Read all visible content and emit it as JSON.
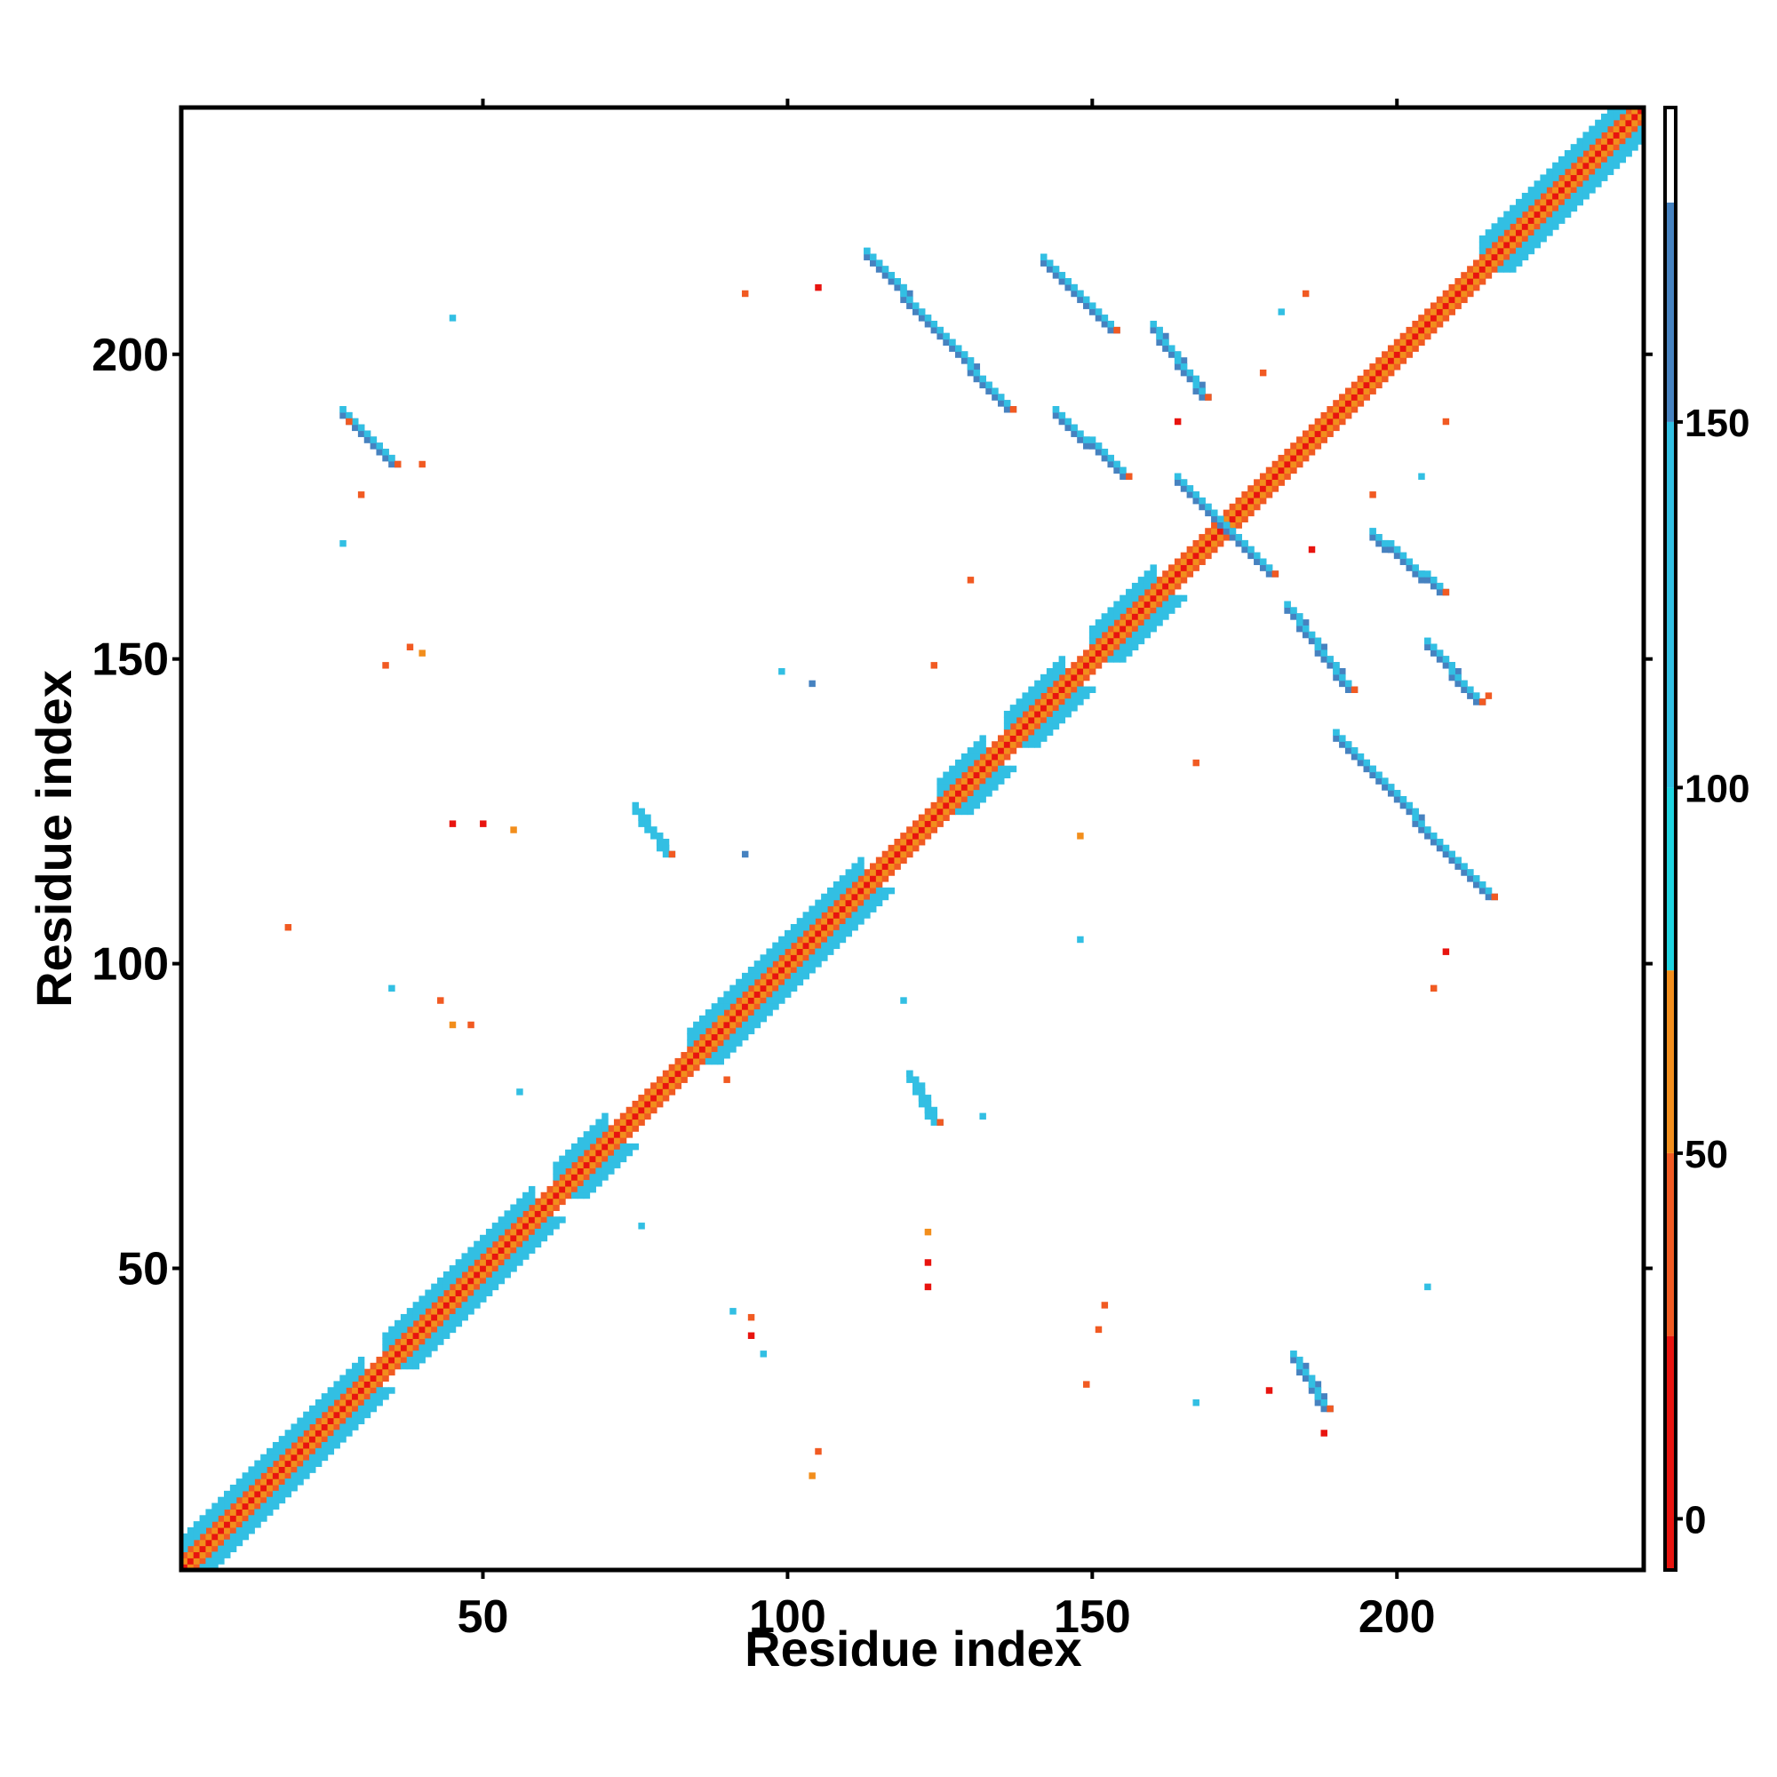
{
  "chart_data": {
    "type": "heatmap",
    "title": "",
    "xlabel": "Residue index",
    "ylabel": "Residue index",
    "xlim": [
      1,
      240
    ],
    "ylim": [
      1,
      240
    ],
    "x_ticks": [
      50,
      100,
      150,
      200
    ],
    "y_ticks": [
      50,
      100,
      150,
      200
    ],
    "grid": false,
    "description_of_values": "pairwise residue map; color encodes value on colorbar",
    "colorbar": {
      "ticks": [
        0,
        50,
        100,
        150
      ],
      "range": [
        -7,
        193
      ],
      "bands": [
        {
          "from": -7,
          "to": 25,
          "color": "#e8140f"
        },
        {
          "from": 25,
          "to": 50,
          "color": "#f15a22"
        },
        {
          "from": 50,
          "to": 75,
          "color": "#f28e1c"
        },
        {
          "from": 75,
          "to": 100,
          "color": "#1fd3e0"
        },
        {
          "from": 100,
          "to": 150,
          "color": "#32bfe3"
        },
        {
          "from": 150,
          "to": 180,
          "color": "#4682c0"
        },
        {
          "from": 180,
          "to": 193,
          "color": "#ffffff"
        }
      ]
    },
    "diagonal": {
      "from": 1,
      "to": 240
    },
    "diagonal_blocks": [
      {
        "from": 1,
        "to": 30,
        "value": 120
      },
      {
        "from": 34,
        "to": 58,
        "value": 110
      },
      {
        "from": 62,
        "to": 70,
        "value": 110
      },
      {
        "from": 84,
        "to": 112,
        "value": 115
      },
      {
        "from": 125,
        "to": 132,
        "value": 110
      },
      {
        "from": 136,
        "to": 145,
        "value": 110
      },
      {
        "from": 150,
        "to": 160,
        "value": 110
      },
      {
        "from": 214,
        "to": 240,
        "value": 120
      }
    ],
    "strands": [
      {
        "x1": 113,
        "y1": 216,
        "x2": 136,
        "y2": 191,
        "value": 160
      },
      {
        "x1": 142,
        "y1": 215,
        "x2": 153,
        "y2": 204,
        "value": 160
      },
      {
        "x1": 160,
        "y1": 204,
        "x2": 168,
        "y2": 193,
        "value": 160
      },
      {
        "x1": 144,
        "y1": 190,
        "x2": 155,
        "y2": 180,
        "value": 160
      },
      {
        "x1": 164,
        "y1": 179,
        "x2": 179,
        "y2": 164,
        "value": 160
      },
      {
        "x1": 196,
        "y1": 170,
        "x2": 207,
        "y2": 161,
        "value": 160
      },
      {
        "x1": 182,
        "y1": 158,
        "x2": 192,
        "y2": 145,
        "value": 160
      },
      {
        "x1": 205,
        "y1": 152,
        "x2": 213,
        "y2": 143,
        "value": 160
      },
      {
        "x1": 190,
        "y1": 137,
        "x2": 215,
        "y2": 111,
        "value": 160
      },
      {
        "x1": 27,
        "y1": 190,
        "x2": 35,
        "y2": 182,
        "value": 160
      },
      {
        "x1": 75,
        "y1": 125,
        "x2": 80,
        "y2": 118,
        "value": 110
      },
      {
        "x1": 120,
        "y1": 81,
        "x2": 124,
        "y2": 74,
        "value": 110
      },
      {
        "x1": 183,
        "y1": 35,
        "x2": 188,
        "y2": 27,
        "value": 160
      }
    ],
    "spots": [
      {
        "x": 105,
        "y": 211,
        "value": 20
      },
      {
        "x": 93,
        "y": 210,
        "value": 40
      },
      {
        "x": 45,
        "y": 206,
        "value": 140
      },
      {
        "x": 28,
        "y": 189,
        "value": 35
      },
      {
        "x": 30,
        "y": 177,
        "value": 35
      },
      {
        "x": 40,
        "y": 182,
        "value": 45
      },
      {
        "x": 27,
        "y": 169,
        "value": 110
      },
      {
        "x": 130,
        "y": 163,
        "value": 30
      },
      {
        "x": 34,
        "y": 149,
        "value": 45
      },
      {
        "x": 38,
        "y": 152,
        "value": 30
      },
      {
        "x": 40,
        "y": 151,
        "value": 60
      },
      {
        "x": 124,
        "y": 149,
        "value": 40
      },
      {
        "x": 99,
        "y": 148,
        "value": 140
      },
      {
        "x": 104,
        "y": 146,
        "value": 150
      },
      {
        "x": 167,
        "y": 133,
        "value": 30
      },
      {
        "x": 45,
        "y": 123,
        "value": 20
      },
      {
        "x": 50,
        "y": 123,
        "value": 20
      },
      {
        "x": 55,
        "y": 122,
        "value": 60
      },
      {
        "x": 93,
        "y": 118,
        "value": 150
      },
      {
        "x": 148,
        "y": 121,
        "value": 50
      },
      {
        "x": 18,
        "y": 106,
        "value": 40
      },
      {
        "x": 148,
        "y": 104,
        "value": 140
      },
      {
        "x": 208,
        "y": 102,
        "value": 20
      },
      {
        "x": 206,
        "y": 96,
        "value": 45
      },
      {
        "x": 35,
        "y": 96,
        "value": 110
      },
      {
        "x": 43,
        "y": 94,
        "value": 40
      },
      {
        "x": 45,
        "y": 90,
        "value": 60
      },
      {
        "x": 48,
        "y": 90,
        "value": 40
      },
      {
        "x": 119,
        "y": 94,
        "value": 140
      },
      {
        "x": 56,
        "y": 79,
        "value": 110
      },
      {
        "x": 132,
        "y": 75,
        "value": 110
      },
      {
        "x": 76,
        "y": 57,
        "value": 110
      },
      {
        "x": 123,
        "y": 56,
        "value": 60
      },
      {
        "x": 123,
        "y": 51,
        "value": 20
      },
      {
        "x": 123,
        "y": 47,
        "value": 20
      },
      {
        "x": 91,
        "y": 43,
        "value": 110
      },
      {
        "x": 94,
        "y": 42,
        "value": 40
      },
      {
        "x": 94,
        "y": 39,
        "value": 20
      },
      {
        "x": 96,
        "y": 36,
        "value": 110
      },
      {
        "x": 152,
        "y": 44,
        "value": 40
      },
      {
        "x": 151,
        "y": 40,
        "value": 40
      },
      {
        "x": 149,
        "y": 31,
        "value": 45
      },
      {
        "x": 205,
        "y": 47,
        "value": 140
      },
      {
        "x": 167,
        "y": 28,
        "value": 110
      },
      {
        "x": 179,
        "y": 30,
        "value": 20
      },
      {
        "x": 188,
        "y": 23,
        "value": 20
      },
      {
        "x": 105,
        "y": 20,
        "value": 45
      },
      {
        "x": 104,
        "y": 16,
        "value": 60
      },
      {
        "x": 185,
        "y": 210,
        "value": 45
      },
      {
        "x": 181,
        "y": 207,
        "value": 110
      },
      {
        "x": 178,
        "y": 197,
        "value": 45
      },
      {
        "x": 208,
        "y": 189,
        "value": 45
      },
      {
        "x": 204,
        "y": 180,
        "value": 110
      },
      {
        "x": 196,
        "y": 177,
        "value": 45
      },
      {
        "x": 186,
        "y": 168,
        "value": 20
      },
      {
        "x": 164,
        "y": 189,
        "value": 20
      },
      {
        "x": 215,
        "y": 144,
        "value": 40
      },
      {
        "x": 89,
        "y": 91,
        "value": 60
      },
      {
        "x": 90,
        "y": 81,
        "value": 40
      }
    ]
  }
}
